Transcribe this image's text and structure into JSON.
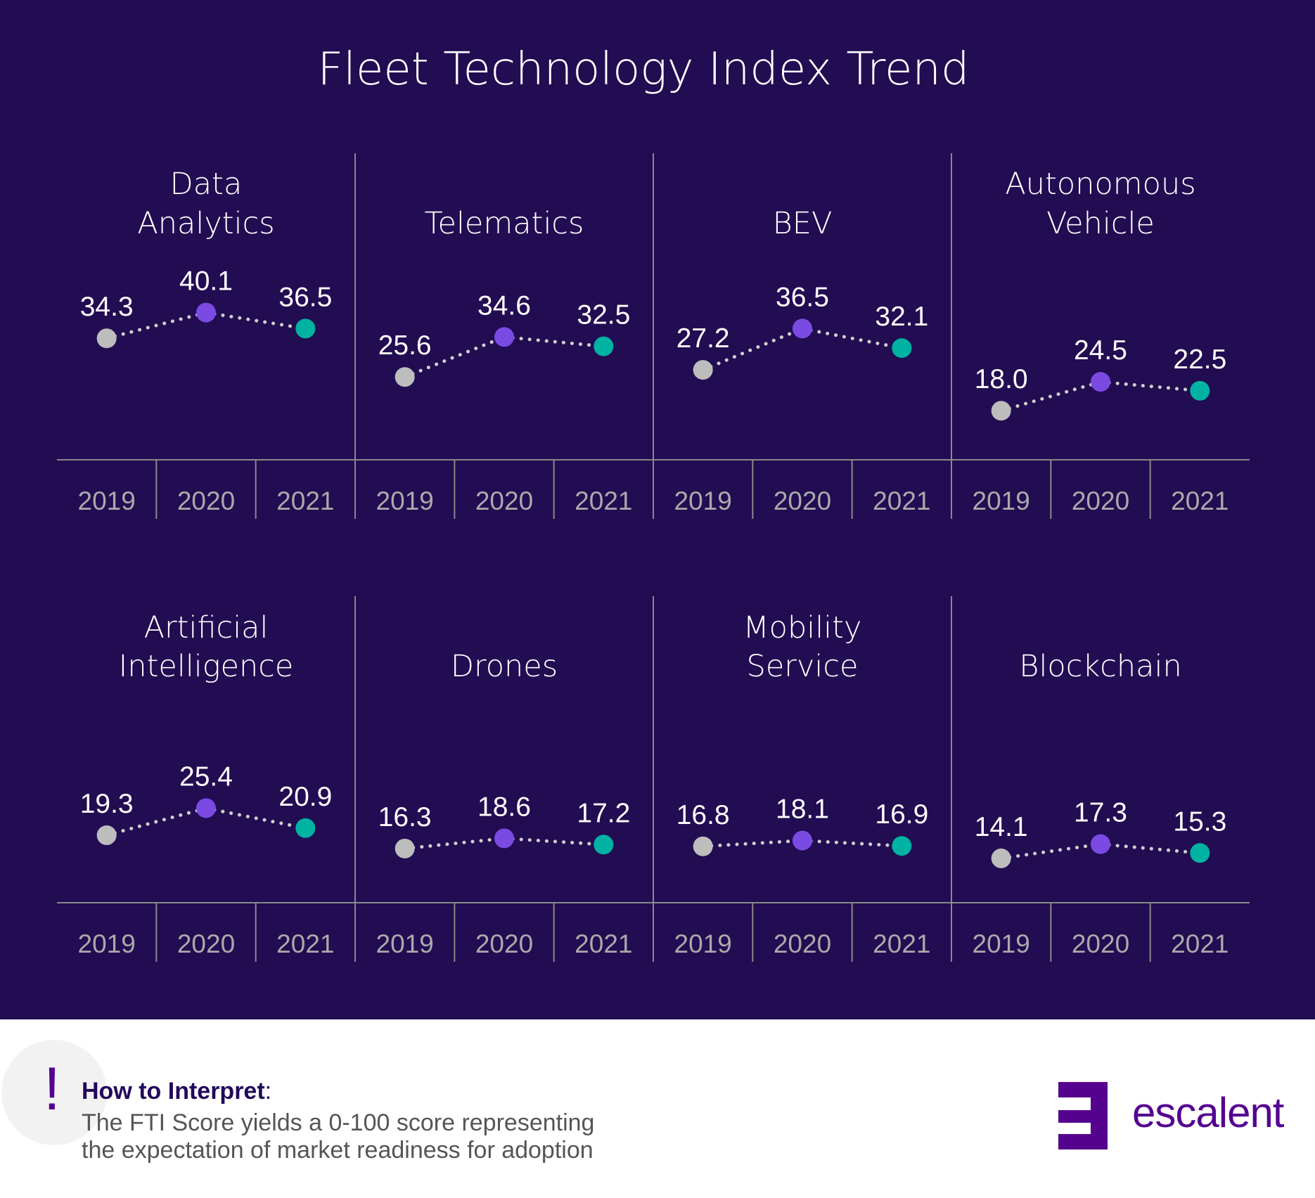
{
  "title": "Fleet Technology Index Trend",
  "colors": {
    "background": "#220c52",
    "2019": "#bdbdbd",
    "2020": "#7b4ae2",
    "2021": "#00b2a2",
    "connector": "#cfcfcf",
    "brand": "#55038f"
  },
  "chart_data": {
    "type": "line",
    "title": "Fleet Technology Index Trend",
    "categories": [
      "2019",
      "2020",
      "2021"
    ],
    "panels": [
      {
        "title": [
          "Data",
          "Analytics"
        ],
        "values": [
          34.3,
          40.1,
          36.5
        ]
      },
      {
        "title": [
          "Telematics"
        ],
        "values": [
          25.6,
          34.6,
          32.5
        ]
      },
      {
        "title": [
          "BEV"
        ],
        "values": [
          27.2,
          36.5,
          32.1
        ]
      },
      {
        "title": [
          "Autonomous",
          "Vehicle"
        ],
        "values": [
          18.0,
          24.5,
          22.5
        ]
      },
      {
        "title": [
          "Artificial",
          "Intelligence"
        ],
        "values": [
          19.3,
          25.4,
          20.9
        ]
      },
      {
        "title": [
          "Drones"
        ],
        "values": [
          16.3,
          18.6,
          17.2
        ]
      },
      {
        "title": [
          "Mobility",
          "Service"
        ],
        "values": [
          16.8,
          18.1,
          16.9
        ]
      },
      {
        "title": [
          "Blockchain"
        ],
        "values": [
          14.1,
          17.3,
          15.3
        ]
      }
    ],
    "grid": false
  },
  "note": {
    "icon": "exclamation-icon",
    "heading": "How to Interpret",
    "colon": ":",
    "lines": [
      "The FTI Score yields a 0-100 score representing",
      "the expectation of market readiness for adoption"
    ]
  },
  "logo": {
    "text": "escalent"
  }
}
